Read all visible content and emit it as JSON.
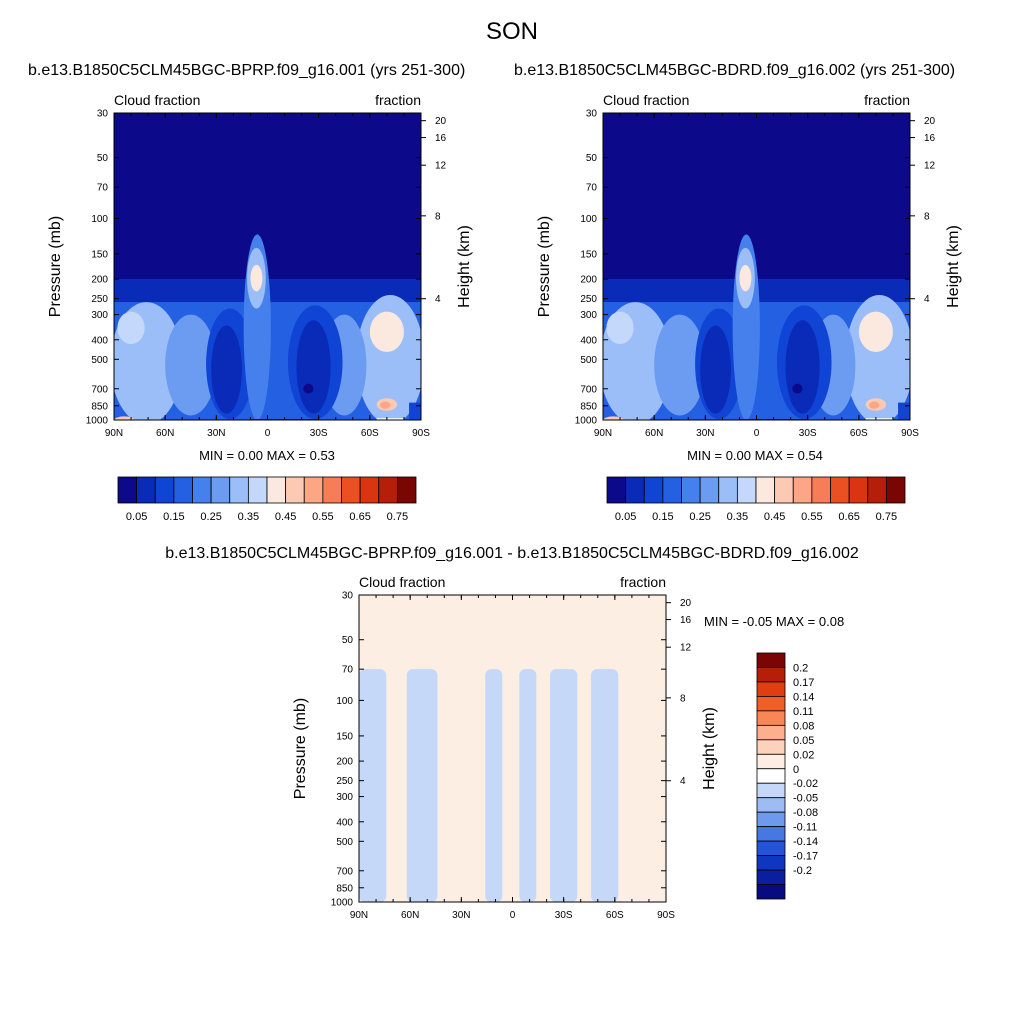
{
  "page": {
    "title": "SON",
    "panel_titles": [
      "b.e13.B1850C5CLM45BGC-BPRP.f09_g16.001 (yrs 251-300)",
      "b.e13.B1850C5CLM45BGC-BDRD.f09_g16.002 (yrs 251-300)",
      "b.e13.B1850C5CLM45BGC-BPRP.f09_g16.001 - b.e13.B1850C5CLM45BGC-BDRD.f09_g16.002"
    ]
  },
  "chart_data": [
    {
      "type": "heatmap",
      "title": "b.e13.B1850C5CLM45BGC-BPRP.f09_g16.001 (yrs 251-300)",
      "left_label": "Cloud fraction",
      "right_label": "fraction",
      "ylabel": "Pressure (mb)",
      "y2label": "Height (km)",
      "x_ticks": [
        "90N",
        "60N",
        "30N",
        "0",
        "30S",
        "60S",
        "90S"
      ],
      "x_range": [
        -90,
        90
      ],
      "y_ticks": [
        30,
        50,
        70,
        100,
        150,
        200,
        250,
        300,
        400,
        500,
        700,
        850,
        1000
      ],
      "y2_ticks": [
        20,
        16,
        12,
        8,
        4
      ],
      "y_scale": "log",
      "y_range": [
        1000,
        30
      ],
      "stats": "MIN =   0.00  MAX =   0.53",
      "min": 0.0,
      "max": 0.53,
      "colorbar": {
        "orientation": "horizontal",
        "levels": [
          0.05,
          0.1,
          0.15,
          0.2,
          0.25,
          0.3,
          0.35,
          0.4,
          0.45,
          0.5,
          0.55,
          0.6,
          0.65,
          0.7,
          0.75
        ],
        "labels": [
          "0.05",
          "0.15",
          "0.25",
          "0.35",
          "0.45",
          "0.55",
          "0.65",
          "0.75"
        ],
        "colors": [
          "#0c0a8a",
          "#0a2ab8",
          "#0f44d4",
          "#2460e2",
          "#4680ec",
          "#6c9cf2",
          "#9cbef8",
          "#c4d8fb",
          "#fbe8de",
          "#fccab2",
          "#fca686",
          "#f77c58",
          "#eb5022",
          "#d83510",
          "#b51e08",
          "#7a0604"
        ]
      }
    },
    {
      "type": "heatmap",
      "title": "b.e13.B1850C5CLM45BGC-BDRD.f09_g16.002 (yrs 251-300)",
      "left_label": "Cloud fraction",
      "right_label": "fraction",
      "ylabel": "Pressure (mb)",
      "y2label": "Height (km)",
      "x_ticks": [
        "90N",
        "60N",
        "30N",
        "0",
        "30S",
        "60S",
        "90S"
      ],
      "x_range": [
        -90,
        90
      ],
      "y_ticks": [
        30,
        50,
        70,
        100,
        150,
        200,
        250,
        300,
        400,
        500,
        700,
        850,
        1000
      ],
      "y2_ticks": [
        20,
        16,
        12,
        8,
        4
      ],
      "y_scale": "log",
      "y_range": [
        1000,
        30
      ],
      "stats": "MIN =   0.00  MAX =   0.54",
      "min": 0.0,
      "max": 0.54,
      "colorbar": {
        "orientation": "horizontal",
        "levels": [
          0.05,
          0.1,
          0.15,
          0.2,
          0.25,
          0.3,
          0.35,
          0.4,
          0.45,
          0.5,
          0.55,
          0.6,
          0.65,
          0.7,
          0.75
        ],
        "labels": [
          "0.05",
          "0.15",
          "0.25",
          "0.35",
          "0.45",
          "0.55",
          "0.65",
          "0.75"
        ],
        "colors": [
          "#0c0a8a",
          "#0a2ab8",
          "#0f44d4",
          "#2460e2",
          "#4680ec",
          "#6c9cf2",
          "#9cbef8",
          "#c4d8fb",
          "#fbe8de",
          "#fccab2",
          "#fca686",
          "#f77c58",
          "#eb5022",
          "#d83510",
          "#b51e08",
          "#7a0604"
        ]
      }
    },
    {
      "type": "heatmap",
      "title": "b.e13.B1850C5CLM45BGC-BPRP.f09_g16.001 - b.e13.B1850C5CLM45BGC-BDRD.f09_g16.002",
      "left_label": "Cloud fraction",
      "right_label": "fraction",
      "ylabel": "Pressure (mb)",
      "y2label": "Height (km)",
      "x_ticks": [
        "90N",
        "60N",
        "30N",
        "0",
        "30S",
        "60S",
        "90S"
      ],
      "x_range": [
        -90,
        90
      ],
      "y_ticks": [
        30,
        50,
        70,
        100,
        150,
        200,
        250,
        300,
        400,
        500,
        700,
        850,
        1000
      ],
      "y2_ticks": [
        20,
        16,
        12,
        8,
        4
      ],
      "y_scale": "log",
      "y_range": [
        1000,
        30
      ],
      "stats": "MIN =  -0.05  MAX =   0.08",
      "min": -0.05,
      "max": 0.08,
      "colorbar": {
        "orientation": "vertical",
        "labels": [
          "0.2",
          "0.17",
          "0.14",
          "0.11",
          "0.08",
          "0.05",
          "0.02",
          "0",
          "-0.02",
          "-0.05",
          "-0.08",
          "-0.11",
          "-0.14",
          "-0.17",
          "-0.2"
        ],
        "colors": [
          "#7a0604",
          "#b51e08",
          "#e03e10",
          "#f25c28",
          "#f98656",
          "#fcb08e",
          "#fcd2bc",
          "#fdeee4",
          "#ffffff",
          "#c6d8f8",
          "#9ebcf4",
          "#6e9aee",
          "#4678e4",
          "#2456d4",
          "#0e36c0",
          "#0a1ea0",
          "#080a80"
        ]
      }
    }
  ]
}
